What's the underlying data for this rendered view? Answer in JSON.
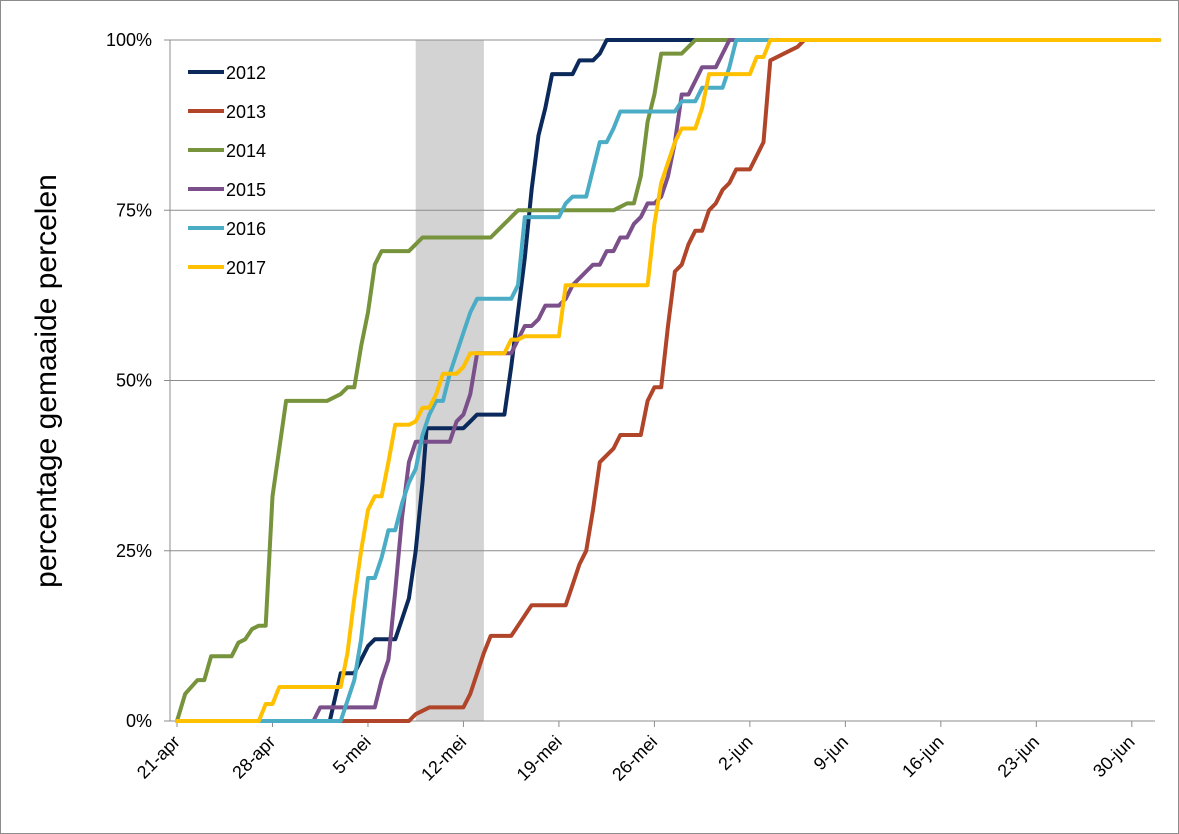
{
  "chart_data": {
    "type": "line",
    "ylabel": "percentage gemaaide percelen",
    "xlabel": "",
    "x_ticks": [
      "21-apr",
      "28-apr",
      "5-mei",
      "12-mei",
      "19-mei",
      "26-mei",
      "2-jun",
      "9-jun",
      "16-jun",
      "23-jun",
      "30-jun"
    ],
    "y_ticks": [
      "0%",
      "25%",
      "50%",
      "75%",
      "100%"
    ],
    "ylim": [
      0,
      100
    ],
    "x_unit": "days since 21-apr",
    "xlim": [
      0,
      72
    ],
    "highlight_band": {
      "from": 17.5,
      "to": 22.5,
      "color": "#d3d3d3"
    },
    "grid": "horizontal",
    "legend_position": "top-left",
    "series": [
      {
        "name": "2012",
        "color": "#0b2a5b",
        "points": [
          [
            11.2,
            0
          ],
          [
            12.0,
            7
          ],
          [
            13.0,
            7
          ],
          [
            13.5,
            9
          ],
          [
            14.0,
            11
          ],
          [
            14.5,
            12
          ],
          [
            16.0,
            12
          ],
          [
            16.5,
            15
          ],
          [
            17.0,
            18
          ],
          [
            17.5,
            25
          ],
          [
            18.0,
            35
          ],
          [
            18.3,
            43
          ],
          [
            19.0,
            43
          ],
          [
            21.0,
            43
          ],
          [
            21.5,
            44
          ],
          [
            22.0,
            45
          ],
          [
            23.0,
            45
          ],
          [
            24.0,
            45
          ],
          [
            24.5,
            52
          ],
          [
            25.0,
            60
          ],
          [
            25.5,
            68
          ],
          [
            26.0,
            78
          ],
          [
            26.5,
            86
          ],
          [
            27.0,
            90
          ],
          [
            27.5,
            95
          ],
          [
            28.5,
            95
          ],
          [
            29.0,
            95
          ],
          [
            29.5,
            97
          ],
          [
            30.5,
            97
          ],
          [
            31.0,
            98
          ],
          [
            31.5,
            100
          ],
          [
            72,
            100
          ]
        ]
      },
      {
        "name": "2013",
        "color": "#b0452a",
        "points": [
          [
            0,
            0
          ],
          [
            17.0,
            0
          ],
          [
            17.5,
            1
          ],
          [
            18.5,
            2
          ],
          [
            20.0,
            2
          ],
          [
            21.0,
            2
          ],
          [
            21.5,
            4
          ],
          [
            22.0,
            7
          ],
          [
            22.5,
            10
          ],
          [
            23.0,
            12.5
          ],
          [
            24.5,
            12.5
          ],
          [
            25.0,
            14
          ],
          [
            26.0,
            17
          ],
          [
            28.5,
            17
          ],
          [
            29.0,
            20
          ],
          [
            29.5,
            23
          ],
          [
            30.0,
            25
          ],
          [
            30.5,
            31
          ],
          [
            31.0,
            38
          ],
          [
            32.0,
            40
          ],
          [
            32.5,
            42
          ],
          [
            34.0,
            42
          ],
          [
            34.5,
            47
          ],
          [
            35.0,
            49
          ],
          [
            35.5,
            49
          ],
          [
            36.0,
            58
          ],
          [
            36.5,
            66
          ],
          [
            37.0,
            67
          ],
          [
            37.5,
            70
          ],
          [
            38.0,
            72
          ],
          [
            38.5,
            72
          ],
          [
            39.0,
            75
          ],
          [
            39.5,
            76
          ],
          [
            40.0,
            78
          ],
          [
            40.5,
            79
          ],
          [
            41.0,
            81
          ],
          [
            42.0,
            81
          ],
          [
            42.5,
            83
          ],
          [
            43.0,
            85
          ],
          [
            43.5,
            97
          ],
          [
            44.5,
            98
          ],
          [
            45.5,
            99
          ],
          [
            46.0,
            100
          ],
          [
            72,
            100
          ]
        ]
      },
      {
        "name": "2014",
        "color": "#77933c",
        "points": [
          [
            0,
            0
          ],
          [
            0.6,
            4
          ],
          [
            1.5,
            6
          ],
          [
            2.0,
            6
          ],
          [
            2.5,
            9.5
          ],
          [
            4.0,
            9.5
          ],
          [
            4.5,
            11.5
          ],
          [
            5.0,
            12
          ],
          [
            5.5,
            13.5
          ],
          [
            6.0,
            14
          ],
          [
            6.5,
            14
          ],
          [
            7.0,
            33
          ],
          [
            7.5,
            40
          ],
          [
            8.0,
            47
          ],
          [
            10.0,
            47
          ],
          [
            11.0,
            47
          ],
          [
            12.0,
            48
          ],
          [
            12.5,
            49
          ],
          [
            13.0,
            49
          ],
          [
            13.5,
            55
          ],
          [
            14.0,
            60
          ],
          [
            14.5,
            67
          ],
          [
            15.0,
            69
          ],
          [
            17.0,
            69
          ],
          [
            17.5,
            70
          ],
          [
            18.0,
            71
          ],
          [
            21.0,
            71
          ],
          [
            22.0,
            71
          ],
          [
            22.5,
            71
          ],
          [
            23.0,
            71
          ],
          [
            23.5,
            72
          ],
          [
            24.5,
            74
          ],
          [
            25.0,
            75
          ],
          [
            31.0,
            75
          ],
          [
            32.0,
            75
          ],
          [
            33.0,
            76
          ],
          [
            33.5,
            76
          ],
          [
            34.0,
            80
          ],
          [
            34.5,
            88
          ],
          [
            35.0,
            92
          ],
          [
            35.5,
            98
          ],
          [
            36.0,
            98
          ],
          [
            37.0,
            98
          ],
          [
            37.5,
            99
          ],
          [
            38.0,
            100
          ],
          [
            72,
            100
          ]
        ]
      },
      {
        "name": "2015",
        "color": "#7b4f8a",
        "points": [
          [
            0,
            0
          ],
          [
            10.0,
            0
          ],
          [
            10.5,
            2
          ],
          [
            11.0,
            2
          ],
          [
            14.5,
            2
          ],
          [
            15.0,
            6
          ],
          [
            15.5,
            9
          ],
          [
            16.0,
            19
          ],
          [
            16.5,
            30
          ],
          [
            17.0,
            38
          ],
          [
            17.5,
            41
          ],
          [
            18.0,
            41
          ],
          [
            20.0,
            41
          ],
          [
            20.5,
            44
          ],
          [
            21.0,
            45
          ],
          [
            21.5,
            48
          ],
          [
            22.0,
            54
          ],
          [
            24.0,
            54
          ],
          [
            24.5,
            54
          ],
          [
            25.0,
            56
          ],
          [
            25.5,
            58
          ],
          [
            26.0,
            58
          ],
          [
            26.5,
            59
          ],
          [
            27.0,
            61
          ],
          [
            28.0,
            61
          ],
          [
            28.5,
            62
          ],
          [
            29.0,
            64
          ],
          [
            29.5,
            65
          ],
          [
            30.0,
            66
          ],
          [
            30.5,
            67
          ],
          [
            31.0,
            67
          ],
          [
            31.5,
            69
          ],
          [
            32.0,
            69
          ],
          [
            32.5,
            71
          ],
          [
            33.0,
            71
          ],
          [
            33.5,
            73
          ],
          [
            34.0,
            74
          ],
          [
            34.5,
            76
          ],
          [
            35.0,
            76
          ],
          [
            35.5,
            77
          ],
          [
            36.0,
            80
          ],
          [
            36.5,
            85
          ],
          [
            37.0,
            92
          ],
          [
            37.5,
            92
          ],
          [
            38.0,
            94
          ],
          [
            38.5,
            96
          ],
          [
            39.5,
            96
          ],
          [
            40.0,
            98
          ],
          [
            40.5,
            100
          ],
          [
            72,
            100
          ]
        ]
      },
      {
        "name": "2016",
        "color": "#4bacc6",
        "points": [
          [
            0,
            0
          ],
          [
            12.0,
            0
          ],
          [
            12.5,
            3
          ],
          [
            13.0,
            6
          ],
          [
            13.5,
            12
          ],
          [
            14.0,
            21
          ],
          [
            14.5,
            21
          ],
          [
            15.0,
            24
          ],
          [
            15.5,
            28
          ],
          [
            16.0,
            28
          ],
          [
            16.5,
            32
          ],
          [
            17.0,
            35
          ],
          [
            17.5,
            37
          ],
          [
            18.0,
            42
          ],
          [
            18.5,
            45
          ],
          [
            19.0,
            47
          ],
          [
            19.5,
            47
          ],
          [
            20.0,
            51
          ],
          [
            20.5,
            54
          ],
          [
            21.0,
            57
          ],
          [
            21.5,
            60
          ],
          [
            22.0,
            62
          ],
          [
            24.0,
            62
          ],
          [
            24.5,
            62
          ],
          [
            25.0,
            64
          ],
          [
            25.5,
            74
          ],
          [
            26.0,
            74
          ],
          [
            28.0,
            74
          ],
          [
            28.5,
            76
          ],
          [
            29.0,
            77
          ],
          [
            30.0,
            77
          ],
          [
            30.5,
            81
          ],
          [
            31.0,
            85
          ],
          [
            31.5,
            85
          ],
          [
            32.0,
            87
          ],
          [
            32.5,
            89.5
          ],
          [
            35.0,
            89.5
          ],
          [
            36.0,
            89.5
          ],
          [
            36.5,
            89.5
          ],
          [
            37.0,
            91
          ],
          [
            38.0,
            91
          ],
          [
            38.5,
            93
          ],
          [
            40.0,
            93
          ],
          [
            40.5,
            96
          ],
          [
            41.0,
            100
          ],
          [
            72,
            100
          ]
        ]
      },
      {
        "name": "2017",
        "color": "#ffc000",
        "points": [
          [
            0,
            0
          ],
          [
            6.0,
            0
          ],
          [
            6.5,
            2.5
          ],
          [
            7.0,
            2.5
          ],
          [
            7.5,
            5
          ],
          [
            11.0,
            5
          ],
          [
            12.0,
            5
          ],
          [
            12.5,
            10
          ],
          [
            13.0,
            18
          ],
          [
            13.5,
            25
          ],
          [
            14.0,
            31
          ],
          [
            14.5,
            33
          ],
          [
            15.0,
            33
          ],
          [
            15.5,
            38
          ],
          [
            16.0,
            43.5
          ],
          [
            17.0,
            43.5
          ],
          [
            17.5,
            44
          ],
          [
            18.0,
            46
          ],
          [
            18.5,
            46
          ],
          [
            19.0,
            48
          ],
          [
            19.5,
            51
          ],
          [
            20.0,
            51
          ],
          [
            20.5,
            51
          ],
          [
            21.0,
            52
          ],
          [
            21.5,
            54
          ],
          [
            24.0,
            54
          ],
          [
            24.5,
            56
          ],
          [
            25.0,
            56
          ],
          [
            25.5,
            56.5
          ],
          [
            28.0,
            56.5
          ],
          [
            28.5,
            64
          ],
          [
            33.0,
            64
          ],
          [
            34.5,
            64
          ],
          [
            35.0,
            73
          ],
          [
            35.5,
            79
          ],
          [
            36.0,
            82
          ],
          [
            36.5,
            85
          ],
          [
            37.0,
            87
          ],
          [
            38.0,
            87
          ],
          [
            38.5,
            90
          ],
          [
            39.0,
            95
          ],
          [
            41.0,
            95
          ],
          [
            42.0,
            95
          ],
          [
            42.5,
            97.5
          ],
          [
            43.0,
            97.5
          ],
          [
            43.5,
            100
          ],
          [
            72,
            100
          ]
        ]
      }
    ]
  }
}
